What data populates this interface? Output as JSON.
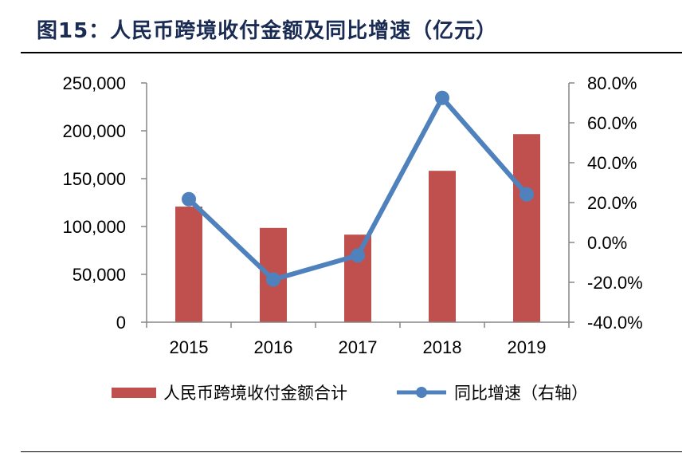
{
  "figure": {
    "title": "图15：人民币跨境收付金额及同比增速（亿元）"
  },
  "chart_data": {
    "type": "bar",
    "categories": [
      "2015",
      "2016",
      "2017",
      "2018",
      "2019"
    ],
    "series": [
      {
        "name": "人民币跨境收付金额合计",
        "type": "bar",
        "axis": "left",
        "color": "#c0504d",
        "values": [
          120800,
          98500,
          91500,
          158200,
          196500
        ]
      },
      {
        "name": "同比增速（右轴）",
        "type": "line",
        "axis": "right",
        "color": "#4f81bd",
        "values": [
          21.7,
          -18.6,
          -6.5,
          72.5,
          24.1
        ]
      }
    ],
    "left_axis": {
      "min": 0,
      "max": 250000,
      "ticks": [
        0,
        50000,
        100000,
        150000,
        200000,
        250000
      ],
      "tick_labels": [
        "0",
        "50,000",
        "100,000",
        "150,000",
        "200,000",
        "250,000"
      ]
    },
    "right_axis": {
      "min": -40,
      "max": 80,
      "ticks": [
        -40,
        -20,
        0,
        20,
        40,
        60,
        80
      ],
      "tick_labels": [
        "-40.0%",
        "-20.0%",
        "0.0%",
        "20.0%",
        "40.0%",
        "60.0%",
        "80.0%"
      ]
    },
    "grid": false,
    "legend_position": "bottom"
  }
}
